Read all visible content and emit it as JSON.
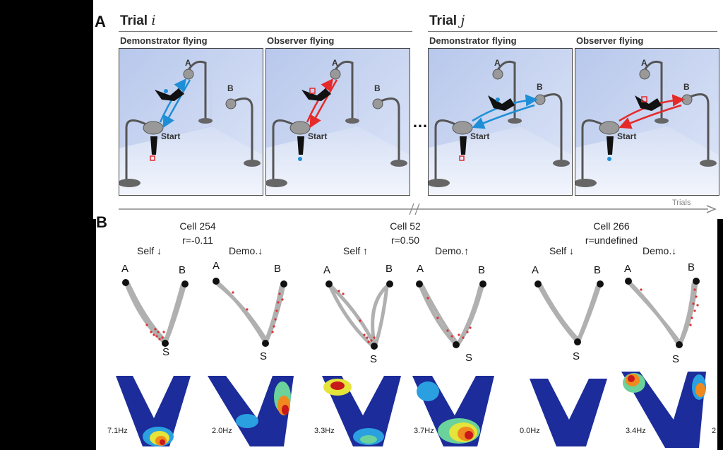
{
  "panelA": {
    "letter": "A",
    "trials": [
      {
        "title": "Trial",
        "var": "i",
        "sub": [
          "Demonstrator flying",
          "Observer flying"
        ]
      },
      {
        "title": "Trial",
        "var": "j",
        "sub": [
          "Demonstrator flying",
          "Observer flying"
        ]
      }
    ],
    "labels": {
      "a": "A",
      "b": "B",
      "start": "Start"
    },
    "ellipsis": "…",
    "timeline": "Trials",
    "colors": {
      "demonstrator": "#1e8fd6",
      "observer": "#e52a2a"
    }
  },
  "panelB": {
    "letter": "B",
    "cells": [
      {
        "name": "Cell 254",
        "r": "r=-0.11",
        "self": "Self ↓",
        "demo": "Demo.↓",
        "self_rate": "7.1Hz",
        "demo_rate": "2.0Hz"
      },
      {
        "name": "Cell 52",
        "r": "r=0.50",
        "self": "Self ↑",
        "demo": "Demo.↑",
        "self_rate": "3.3Hz",
        "demo_rate": "3.7Hz"
      },
      {
        "name": "Cell 266",
        "r": "r=undefined",
        "self": "Self ↓",
        "demo": "Demo.↓",
        "self_rate": "0.0Hz",
        "demo_rate": "3.4Hz"
      }
    ],
    "labels": {
      "a": "A",
      "b": "B",
      "s": "S"
    },
    "trailing_digit": "2"
  }
}
